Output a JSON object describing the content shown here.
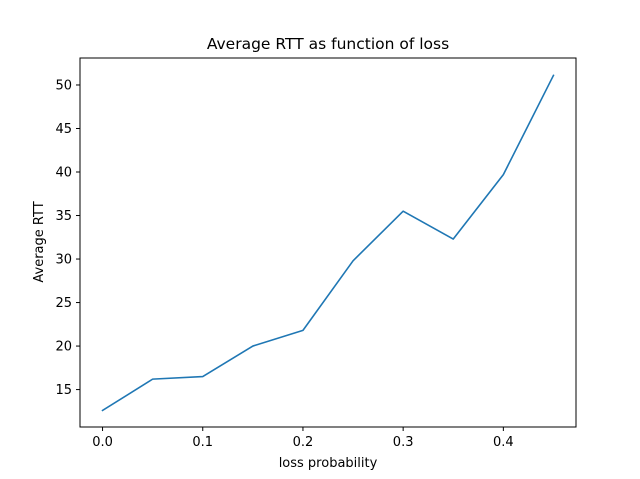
{
  "chart_data": {
    "type": "line",
    "title": "Average RTT as function of loss",
    "xlabel": "loss probability",
    "ylabel": "Average RTT",
    "xlim": [
      -0.0225,
      0.4725
    ],
    "ylim": [
      10.7,
      53.1
    ],
    "xticks": [
      0.0,
      0.1,
      0.2,
      0.3,
      0.4
    ],
    "xtick_labels": [
      "0.0",
      "0.1",
      "0.2",
      "0.3",
      "0.4"
    ],
    "yticks": [
      15,
      20,
      25,
      30,
      35,
      40,
      45,
      50
    ],
    "ytick_labels": [
      "15",
      "20",
      "25",
      "30",
      "35",
      "40",
      "45",
      "50"
    ],
    "grid": false,
    "series": [
      {
        "color": "#1f77b4",
        "x": [
          0.0,
          0.05,
          0.1,
          0.15,
          0.2,
          0.25,
          0.3,
          0.35,
          0.4,
          0.45
        ],
        "y": [
          12.6,
          16.2,
          16.5,
          20.0,
          21.8,
          29.8,
          35.5,
          32.3,
          39.7,
          51.1
        ]
      }
    ]
  }
}
